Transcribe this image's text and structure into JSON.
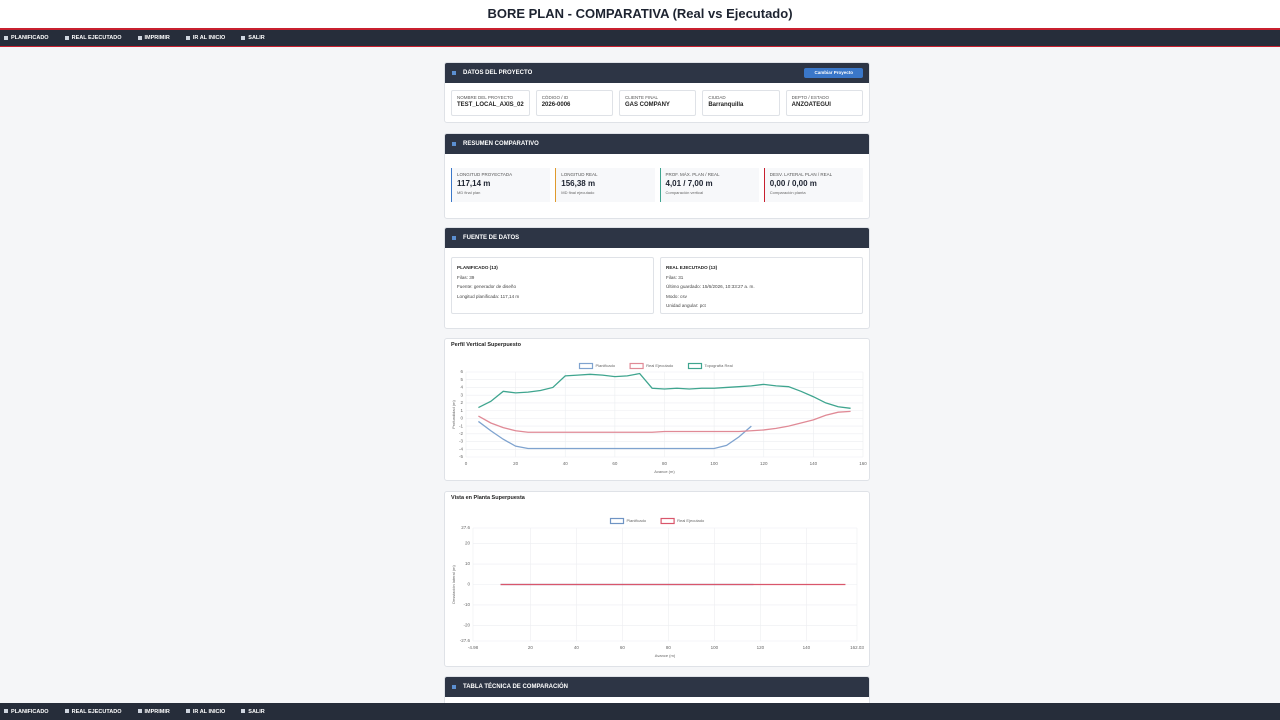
{
  "header": {
    "title": "BORE PLAN - COMPARATIVA (Real vs Ejecutado)"
  },
  "nav": [
    "PLANIFICADO",
    "REAL EJECUTADO",
    "IMPRIMIR",
    "IR AL INICIO",
    "SALIR"
  ],
  "project": {
    "title": "DATOS DEL PROYECTO",
    "button": "Cambiar Proyecto",
    "fields": [
      {
        "label": "NOMBRE DEL PROYECTO",
        "value": "TEST_LOCAL_AXIS_02"
      },
      {
        "label": "CÓDIGO / ID",
        "value": "2026-0006"
      },
      {
        "label": "CLIENTE FINAL",
        "value": "GAS COMPANY"
      },
      {
        "label": "CIUDAD",
        "value": "Barranquilla"
      },
      {
        "label": "DEPTO / ESTADO",
        "value": "ANZOATEGUI"
      }
    ]
  },
  "summary": {
    "title": "RESUMEN COMPARATIVO",
    "cards": [
      {
        "label": "LONGITUD PROYECTADA",
        "value": "117,14 m",
        "note": "MD final plan"
      },
      {
        "label": "LONGITUD REAL",
        "value": "156,38 m",
        "note": "MD final ejecutado"
      },
      {
        "label": "PROF. MÁX. PLAN / REAL",
        "value": "4,01 / 7,00 m",
        "note": "Comparación vertical"
      },
      {
        "label": "DESV. LATERAL PLAN / REAL",
        "value": "0,00 / 0,00 m",
        "note": "Comparación planta"
      }
    ]
  },
  "sources": {
    "title": "FUENTE DE DATOS",
    "boxes": [
      {
        "title": "PLANIFICADO (13)",
        "lines": [
          "Filas: 39",
          "Fuente: generador de diseño",
          "Longitud planificada: 117,14 m"
        ]
      },
      {
        "title": "REAL EJECUTADO (13)",
        "lines": [
          "Filas: 31",
          "Último guardado: 15/6/2026, 10:33:27 a. m.",
          "Modo: csv",
          "Unidad angular: pct"
        ]
      }
    ]
  },
  "table": {
    "title": "TABLA TÉCNICA DE COMPARACIÓN"
  },
  "chart_data": [
    {
      "type": "line",
      "title": "Perfil Vertical Superpuesto",
      "x_label": "Avance (m)",
      "y_label": "Profundidad (m)",
      "x": [
        5,
        10,
        15,
        20,
        25,
        30,
        35,
        40,
        45,
        50,
        55,
        60,
        65,
        70,
        75,
        80,
        85,
        90,
        95,
        100,
        105,
        110,
        115,
        120,
        125,
        130,
        135,
        140,
        145,
        150,
        155
      ],
      "series": [
        {
          "name": "Planificado",
          "color": "#7fa3cf",
          "values": [
            -0.4,
            -1.6,
            -2.7,
            -3.6,
            -3.9,
            -3.9,
            -3.9,
            -3.9,
            -3.9,
            -3.9,
            -3.9,
            -3.9,
            -3.9,
            -3.9,
            -3.9,
            -3.9,
            -3.9,
            -3.9,
            -3.9,
            -3.9,
            -3.5,
            -2.4,
            -1.0,
            null,
            null,
            null,
            null,
            null,
            null,
            null,
            null
          ]
        },
        {
          "name": "Real Ejecutado",
          "color": "#e08a96",
          "values": [
            0.3,
            -0.6,
            -1.2,
            -1.6,
            -1.8,
            -1.8,
            -1.8,
            -1.8,
            -1.8,
            -1.8,
            -1.8,
            -1.8,
            -1.8,
            -1.8,
            -1.8,
            -1.7,
            -1.7,
            -1.7,
            -1.7,
            -1.7,
            -1.7,
            -1.7,
            -1.6,
            -1.5,
            -1.3,
            -1.0,
            -0.6,
            -0.2,
            0.4,
            0.8,
            0.9
          ]
        },
        {
          "name": "Topografía Real",
          "color": "#3fa58f",
          "values": [
            1.4,
            2.2,
            3.5,
            3.3,
            3.4,
            3.6,
            4.0,
            5.5,
            5.6,
            5.7,
            5.6,
            5.4,
            5.5,
            5.8,
            3.9,
            3.8,
            3.9,
            3.8,
            3.9,
            3.9,
            4.0,
            4.1,
            4.2,
            4.4,
            4.2,
            4.1,
            3.5,
            2.8,
            2.0,
            1.5,
            1.3
          ]
        }
      ],
      "xlim": [
        0,
        160
      ],
      "xticks": [
        0,
        20,
        40,
        60,
        80,
        100,
        120,
        140,
        160
      ],
      "ylim": [
        -5,
        6
      ],
      "yticks": [
        -5,
        -4,
        -3,
        -2,
        -1,
        0,
        1,
        2,
        3,
        4,
        5,
        6
      ],
      "grid": true
    },
    {
      "type": "line",
      "title": "Vista en Planta Superpuesta",
      "x_label": "Avance (m)",
      "y_label": "Desviación lateral (m)",
      "series": [
        {
          "name": "Planificado",
          "color": "#6f94c4",
          "x": [
            7,
            117
          ],
          "values": [
            0,
            0
          ]
        },
        {
          "name": "Real Ejecutado",
          "color": "#d9566b",
          "x": [
            7,
            157
          ],
          "values": [
            0,
            0
          ]
        }
      ],
      "xlim": [
        -4.98,
        162.03
      ],
      "xticks": [
        -4.98,
        20,
        40,
        60,
        80,
        100,
        120,
        140,
        162.03
      ],
      "ylim": [
        -27.6,
        27.6
      ],
      "yticks": [
        -27.6,
        -20,
        -10,
        0,
        10,
        20,
        27.6
      ],
      "grid": true
    }
  ]
}
